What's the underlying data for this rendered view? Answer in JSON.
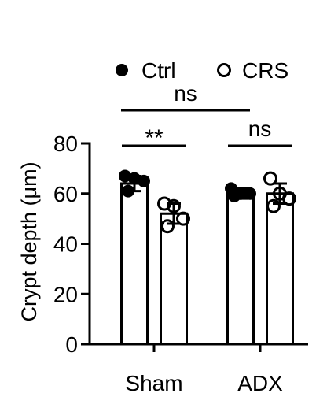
{
  "chart_data": {
    "type": "bar",
    "ylabel": "Crypt depth (μm)",
    "ylim": [
      0,
      80
    ],
    "yticks": [
      0,
      20,
      40,
      60,
      80
    ],
    "categories": [
      "Sham",
      "ADX"
    ],
    "series": [
      {
        "name": "Ctrl",
        "marker": "filled-circle",
        "values": [
          64,
          60
        ],
        "error": [
          3,
          2
        ],
        "points": [
          [
            67,
            66,
            65,
            61
          ],
          [
            62,
            60,
            60,
            59
          ]
        ]
      },
      {
        "name": "CRS",
        "marker": "open-circle",
        "values": [
          52,
          60
        ],
        "error": [
          4,
          4
        ],
        "points": [
          [
            56,
            55,
            50,
            47
          ],
          [
            66,
            60,
            58,
            55
          ]
        ]
      }
    ],
    "annotations": [
      {
        "id": "sham-ctrl-vs-crs",
        "label": "**"
      },
      {
        "id": "adx-ctrl-vs-crs",
        "label": "ns"
      },
      {
        "id": "ctrl-sham-vs-adx",
        "label": "ns"
      }
    ],
    "legend_position": "top",
    "grid": false
  }
}
